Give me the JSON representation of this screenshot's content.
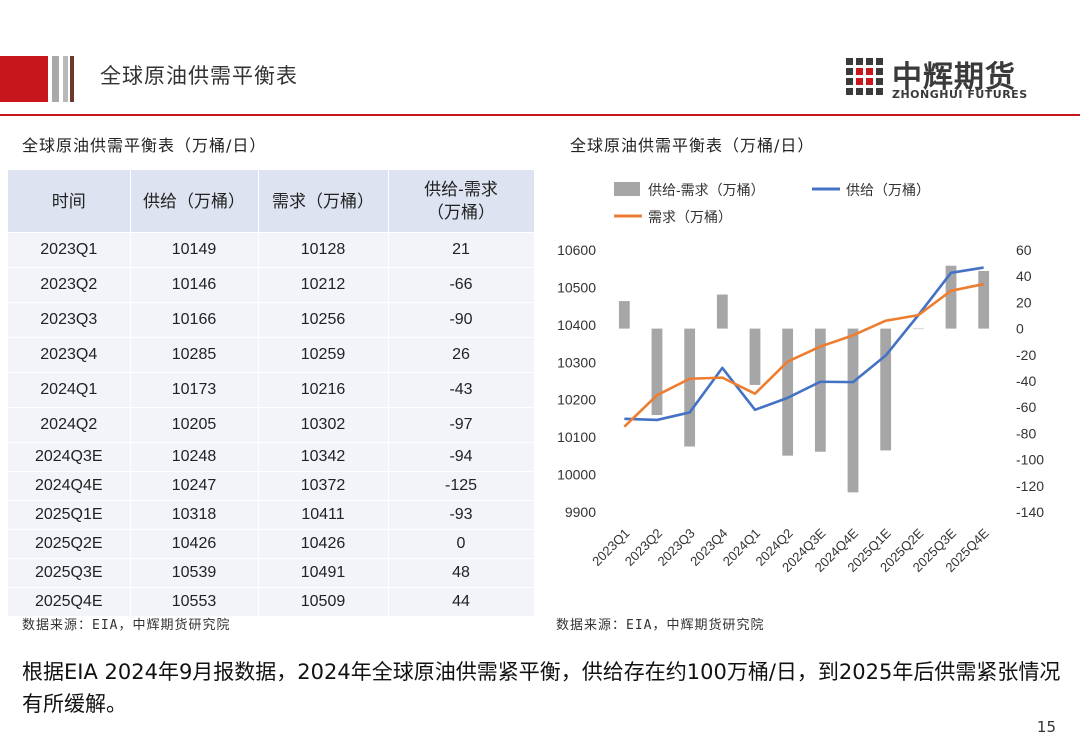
{
  "header": {
    "title": "全球原油供需平衡表",
    "logo_cn": "中辉期货",
    "logo_en": "ZHONGHUI FUTURES"
  },
  "table": {
    "title": "全球原油供需平衡表（万桶/日）",
    "headers": [
      "时间",
      "供给（万桶）",
      "需求（万桶）",
      "供给-需求\n（万桶）"
    ],
    "rows": [
      [
        "2023Q1",
        "10149",
        "10128",
        "21"
      ],
      [
        "2023Q2",
        "10146",
        "10212",
        "-66"
      ],
      [
        "2023Q3",
        "10166",
        "10256",
        "-90"
      ],
      [
        "2023Q4",
        "10285",
        "10259",
        "26"
      ],
      [
        "2024Q1",
        "10173",
        "10216",
        "-43"
      ],
      [
        "2024Q2",
        "10205",
        "10302",
        "-97"
      ],
      [
        "2024Q3E",
        "10248",
        "10342",
        "-94"
      ],
      [
        "2024Q4E",
        "10247",
        "10372",
        "-125"
      ],
      [
        "2025Q1E",
        "10318",
        "10411",
        "-93"
      ],
      [
        "2025Q2E",
        "10426",
        "10426",
        "0"
      ],
      [
        "2025Q3E",
        "10539",
        "10491",
        "48"
      ],
      [
        "2025Q4E",
        "10553",
        "10509",
        "44"
      ]
    ],
    "source": "数据来源：EIA，中辉期货研究院"
  },
  "chart_title": "全球原油供需平衡表（万桶/日）",
  "chart_source": "数据来源：EIA，中辉期货研究院",
  "chart_data": {
    "type": "bar+line",
    "categories": [
      "2023Q1",
      "2023Q2",
      "2023Q3",
      "2023Q4",
      "2024Q1",
      "2024Q2",
      "2024Q3E",
      "2024Q4E",
      "2025Q1E",
      "2025Q2E",
      "2025Q3E",
      "2025Q4E"
    ],
    "series": [
      {
        "name": "供给-需求（万桶）",
        "kind": "bar",
        "axis": "right",
        "color": "#a6a6a6",
        "values": [
          21,
          -66,
          -90,
          26,
          -43,
          -97,
          -94,
          -125,
          -93,
          0,
          48,
          44
        ]
      },
      {
        "name": "供给（万桶）",
        "kind": "line",
        "axis": "left",
        "color": "#4472c4",
        "values": [
          10149,
          10146,
          10166,
          10285,
          10173,
          10205,
          10248,
          10247,
          10318,
          10426,
          10539,
          10553
        ]
      },
      {
        "name": "需求（万桶）",
        "kind": "line",
        "axis": "left",
        "color": "#ed7d31",
        "values": [
          10128,
          10212,
          10256,
          10259,
          10216,
          10302,
          10342,
          10372,
          10411,
          10426,
          10491,
          10509
        ]
      }
    ],
    "left_axis": {
      "min": 9900,
      "max": 10600,
      "ticks": [
        9900,
        10000,
        10100,
        10200,
        10300,
        10400,
        10500,
        10600
      ]
    },
    "right_axis": {
      "min": -140,
      "max": 60,
      "ticks": [
        -140,
        -120,
        -100,
        -80,
        -60,
        -40,
        -20,
        0,
        20,
        40,
        60
      ]
    },
    "legend": "top"
  },
  "conclusion": "根据EIA 2024年9月报数据，2024年全球原油供需紧平衡，供给存在约100万桶/日，到2025年后供需紧张情况有所缓解。",
  "page_number": "15"
}
